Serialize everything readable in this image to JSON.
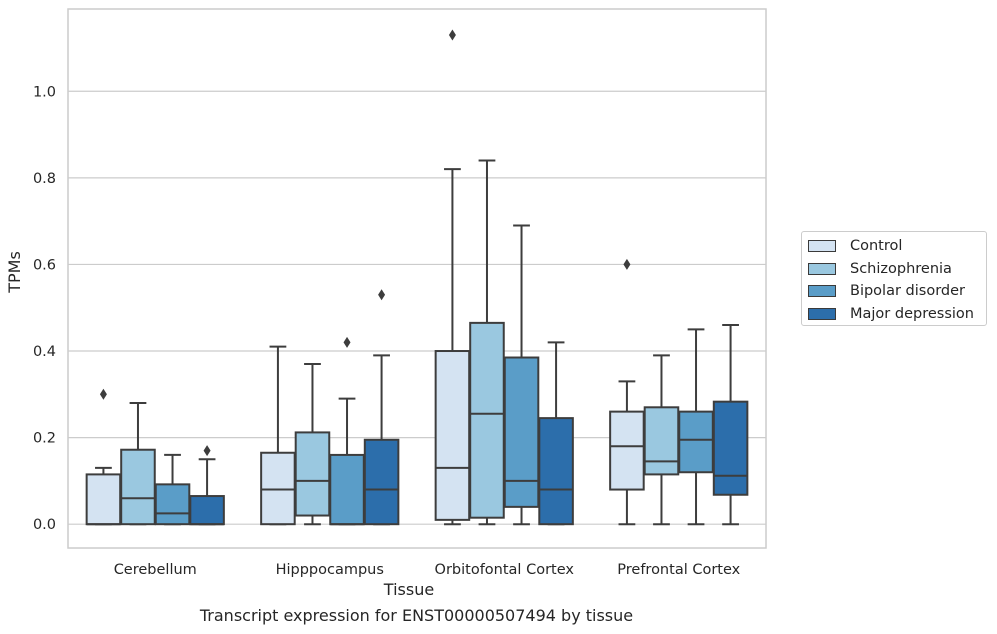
{
  "chart_data": {
    "type": "boxplot",
    "caption": "Transcript expression for ENST00000507494 by tissue",
    "xlabel": "Tissue",
    "ylabel": "TPMs",
    "ylim": [
      -0.055,
      1.19
    ],
    "yticks": [
      0.0,
      0.2,
      0.4,
      0.6,
      0.8,
      1.0
    ],
    "ytick_labels": [
      "0.0",
      "0.2",
      "0.4",
      "0.6",
      "0.8",
      "1.0"
    ],
    "grid": "horizontal",
    "legend_position": "right",
    "categories": [
      "Cerebellum",
      "Hipppocampus",
      "Orbitofontal Cortex",
      "Prefrontal Cortex"
    ],
    "series": [
      {
        "name": "Control",
        "color": "#d4e3f2",
        "boxes": [
          {
            "whislo": 0.0,
            "q1": 0.0,
            "med": 0.0,
            "q3": 0.115,
            "whishi": 0.13,
            "fliers": [
              0.3
            ]
          },
          {
            "whislo": 0.0,
            "q1": 0.0,
            "med": 0.08,
            "q3": 0.165,
            "whishi": 0.41,
            "fliers": []
          },
          {
            "whislo": 0.0,
            "q1": 0.01,
            "med": 0.13,
            "q3": 0.4,
            "whishi": 0.82,
            "fliers": [
              1.13
            ]
          },
          {
            "whislo": 0.0,
            "q1": 0.08,
            "med": 0.18,
            "q3": 0.26,
            "whishi": 0.33,
            "fliers": [
              0.6
            ]
          }
        ]
      },
      {
        "name": "Schizophrenia",
        "color": "#9ac8e0",
        "boxes": [
          {
            "whislo": 0.0,
            "q1": 0.0,
            "med": 0.06,
            "q3": 0.172,
            "whishi": 0.28,
            "fliers": []
          },
          {
            "whislo": 0.0,
            "q1": 0.02,
            "med": 0.1,
            "q3": 0.212,
            "whishi": 0.37,
            "fliers": []
          },
          {
            "whislo": 0.0,
            "q1": 0.015,
            "med": 0.255,
            "q3": 0.465,
            "whishi": 0.84,
            "fliers": []
          },
          {
            "whislo": 0.0,
            "q1": 0.115,
            "med": 0.145,
            "q3": 0.27,
            "whishi": 0.39,
            "fliers": []
          }
        ]
      },
      {
        "name": "Bipolar disorder",
        "color": "#5a9dc8",
        "boxes": [
          {
            "whislo": 0.0,
            "q1": 0.0,
            "med": 0.025,
            "q3": 0.092,
            "whishi": 0.16,
            "fliers": []
          },
          {
            "whislo": 0.0,
            "q1": 0.0,
            "med": 0.0,
            "q3": 0.16,
            "whishi": 0.29,
            "fliers": [
              0.42
            ]
          },
          {
            "whislo": 0.0,
            "q1": 0.04,
            "med": 0.1,
            "q3": 0.385,
            "whishi": 0.69,
            "fliers": []
          },
          {
            "whislo": 0.0,
            "q1": 0.12,
            "med": 0.195,
            "q3": 0.26,
            "whishi": 0.45,
            "fliers": []
          }
        ]
      },
      {
        "name": "Major depression",
        "color": "#2c6eab",
        "boxes": [
          {
            "whislo": 0.0,
            "q1": 0.0,
            "med": 0.0,
            "q3": 0.065,
            "whishi": 0.15,
            "fliers": [
              0.17
            ]
          },
          {
            "whislo": 0.0,
            "q1": 0.0,
            "med": 0.08,
            "q3": 0.195,
            "whishi": 0.39,
            "fliers": [
              0.53
            ]
          },
          {
            "whislo": 0.0,
            "q1": 0.0,
            "med": 0.08,
            "q3": 0.245,
            "whishi": 0.42,
            "fliers": []
          },
          {
            "whislo": 0.0,
            "q1": 0.068,
            "med": 0.112,
            "q3": 0.283,
            "whishi": 0.46,
            "fliers": []
          }
        ]
      }
    ]
  }
}
